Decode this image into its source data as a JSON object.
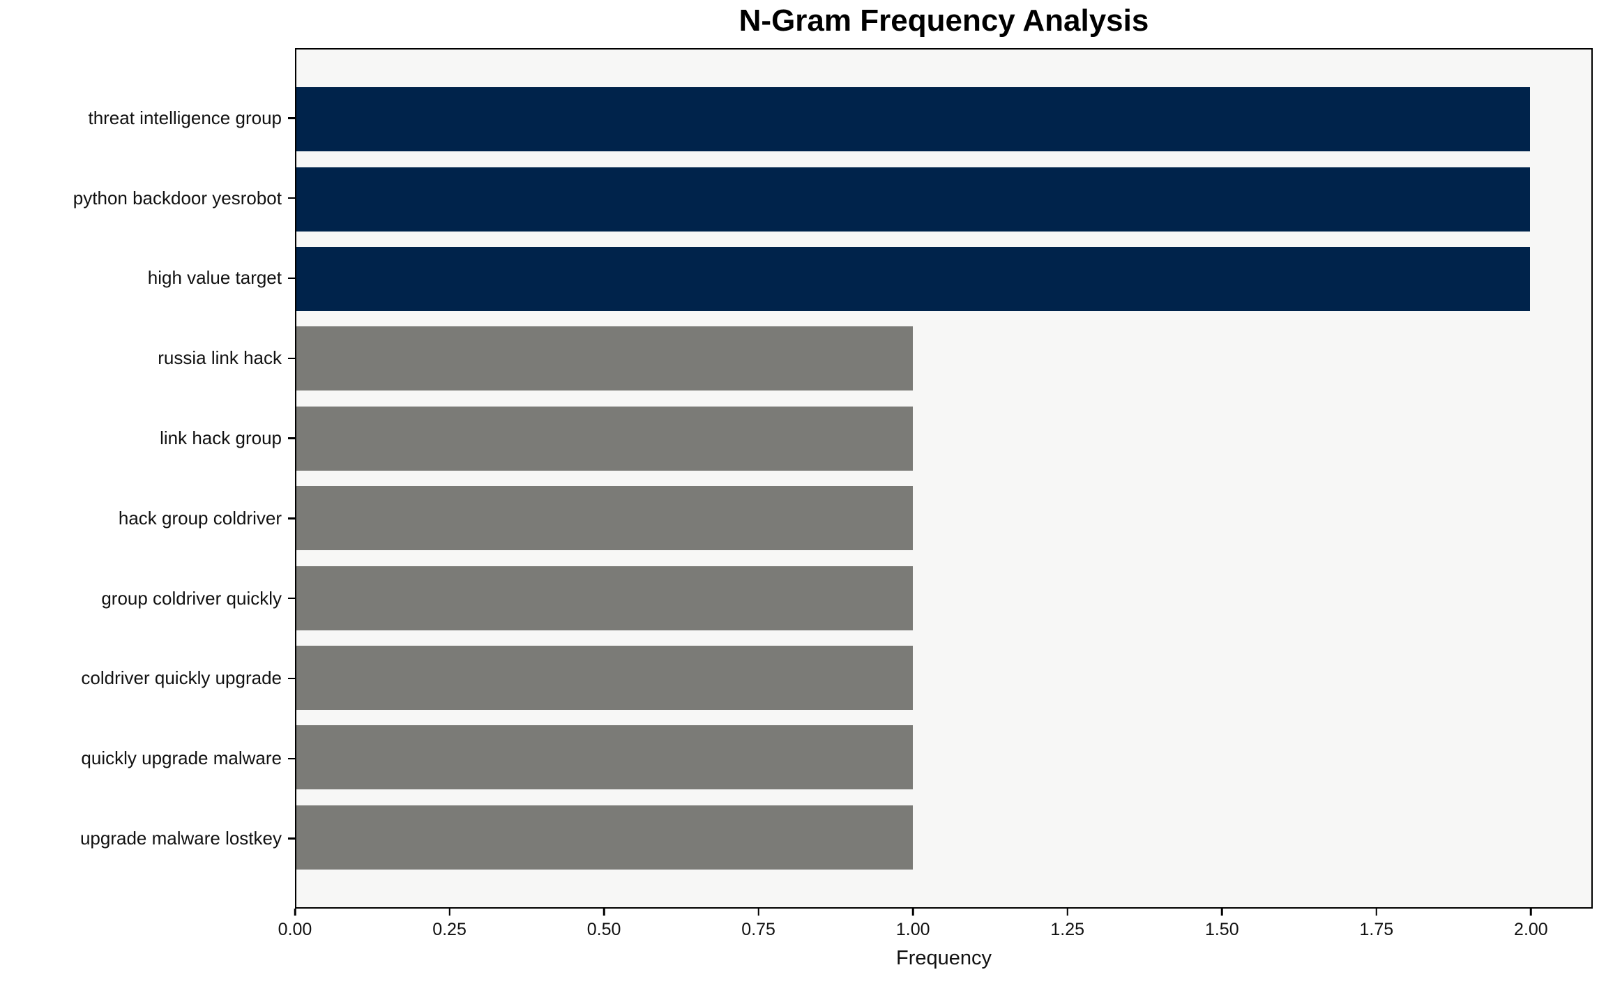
{
  "title": "N-Gram Frequency Analysis",
  "colors": {
    "highlight_bar": "#00234B",
    "default_bar": "#7B7B77",
    "plot_background": "#F7F7F6",
    "figure_background": "#FFFFFF",
    "axis": "#000000",
    "text": "#111111"
  },
  "chart_data": {
    "type": "bar",
    "orientation": "horizontal",
    "title": "N-Gram Frequency Analysis",
    "xlabel": "Frequency",
    "ylabel": "",
    "categories": [
      "threat intelligence group",
      "python backdoor yesrobot",
      "high value target",
      "russia link hack",
      "link hack group",
      "hack group coldriver",
      "group coldriver quickly",
      "coldriver quickly upgrade",
      "quickly upgrade malware",
      "upgrade malware lostkey"
    ],
    "values": [
      2,
      2,
      2,
      1,
      1,
      1,
      1,
      1,
      1,
      1
    ],
    "bar_colors": [
      "#00234B",
      "#00234B",
      "#00234B",
      "#7B7B77",
      "#7B7B77",
      "#7B7B77",
      "#7B7B77",
      "#7B7B77",
      "#7B7B77",
      "#7B7B77"
    ],
    "xlim": [
      0,
      2.1
    ],
    "x_ticks": [
      0,
      0.25,
      0.5,
      0.75,
      1.0,
      1.25,
      1.5,
      1.75,
      2.0
    ],
    "x_tick_labels": [
      "0.00",
      "0.25",
      "0.50",
      "0.75",
      "1.00",
      "1.25",
      "1.50",
      "1.75",
      "2.00"
    ],
    "grid": false,
    "legend_position": "none"
  }
}
